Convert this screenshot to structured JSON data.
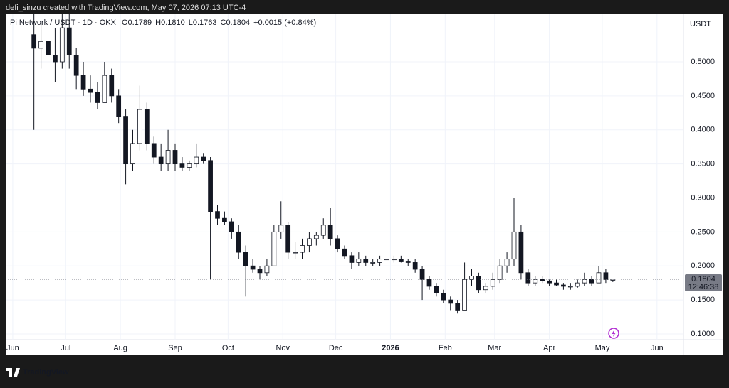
{
  "header": {
    "caption": "defi_sinzu created with TradingView.com, May 07, 2026 07:13 UTC-4"
  },
  "footer": {
    "logo": "TradingView"
  },
  "chart_data": {
    "type": "candlestick",
    "symbol": "Pi Network / USDT · 1D · OKX",
    "legend_values": [
      "O0.1789",
      "H0.1810",
      "L0.1763",
      "C0.1804",
      "+0.0015 (+0.84%)"
    ],
    "currency": "USDT",
    "last_price": {
      "value": 0.1804,
      "label": "0.1804"
    },
    "countdown": "12:46:38",
    "xlim": [
      -4,
      380
    ],
    "ylim": [
      0.0916,
      0.57
    ],
    "xticks": [
      {
        "value": 0,
        "label": "Jun"
      },
      {
        "value": 30,
        "label": "Jul"
      },
      {
        "value": 61,
        "label": "Aug"
      },
      {
        "value": 92,
        "label": "Sep"
      },
      {
        "value": 122,
        "label": "Oct"
      },
      {
        "value": 153,
        "label": "Nov"
      },
      {
        "value": 183,
        "label": "Dec"
      },
      {
        "value": 214,
        "label": "2026"
      },
      {
        "value": 245,
        "label": "Feb"
      },
      {
        "value": 273,
        "label": "Mar"
      },
      {
        "value": 304,
        "label": "Apr"
      },
      {
        "value": 334,
        "label": "May"
      },
      {
        "value": 365,
        "label": "Jun"
      }
    ],
    "yticks": [
      {
        "value": 0.1,
        "label": "0.1000"
      },
      {
        "value": 0.15,
        "label": "0.1500"
      },
      {
        "value": 0.2,
        "label": "0.2000"
      },
      {
        "value": 0.25,
        "label": "0.2500"
      },
      {
        "value": 0.3,
        "label": "0.3000"
      },
      {
        "value": 0.35,
        "label": "0.3500"
      },
      {
        "value": 0.4,
        "label": "0.4000"
      },
      {
        "value": 0.45,
        "label": "0.4500"
      },
      {
        "value": 0.5,
        "label": "0.5000"
      }
    ],
    "grid": true,
    "up_color": "#ffffff",
    "down_color": "#131722",
    "wick_color": "#131722",
    "series": [
      {
        "name": "Pi Network / USDT",
        "x": [
          12,
          16,
          20,
          24,
          28,
          32,
          36,
          40,
          44,
          48,
          52,
          56,
          60,
          64,
          68,
          72,
          76,
          80,
          84,
          88,
          92,
          96,
          100,
          104,
          108,
          112,
          116,
          120,
          124,
          128,
          132,
          136,
          140,
          144,
          148,
          152,
          156,
          160,
          164,
          168,
          172,
          176,
          180,
          184,
          188,
          192,
          196,
          200,
          204,
          208,
          212,
          216,
          220,
          224,
          228,
          232,
          236,
          240,
          244,
          248,
          252,
          256,
          260,
          264,
          268,
          272,
          276,
          280,
          284,
          288,
          292,
          296,
          300,
          304,
          308,
          312,
          316,
          320,
          324,
          328,
          332,
          336,
          340
        ],
        "open": [
          0.54,
          0.52,
          0.53,
          0.51,
          0.5,
          0.55,
          0.51,
          0.48,
          0.46,
          0.455,
          0.44,
          0.48,
          0.45,
          0.42,
          0.35,
          0.38,
          0.43,
          0.38,
          0.36,
          0.35,
          0.37,
          0.35,
          0.345,
          0.35,
          0.36,
          0.355,
          0.28,
          0.27,
          0.265,
          0.25,
          0.22,
          0.2,
          0.195,
          0.19,
          0.2,
          0.25,
          0.26,
          0.22,
          0.22,
          0.23,
          0.24,
          0.245,
          0.26,
          0.24,
          0.225,
          0.215,
          0.205,
          0.21,
          0.205,
          0.205,
          0.21,
          0.21,
          0.21,
          0.207,
          0.205,
          0.195,
          0.18,
          0.17,
          0.16,
          0.15,
          0.145,
          0.135,
          0.18,
          0.185,
          0.165,
          0.17,
          0.18,
          0.2,
          0.21,
          0.25,
          0.19,
          0.175,
          0.18,
          0.178,
          0.175,
          0.172,
          0.17,
          0.17,
          0.175,
          0.18,
          0.175,
          0.19,
          0.1789
        ],
        "high": [
          0.57,
          0.56,
          0.57,
          0.55,
          0.57,
          0.57,
          0.52,
          0.5,
          0.48,
          0.47,
          0.5,
          0.49,
          0.46,
          0.43,
          0.4,
          0.465,
          0.44,
          0.39,
          0.38,
          0.4,
          0.38,
          0.36,
          0.355,
          0.38,
          0.365,
          0.36,
          0.29,
          0.28,
          0.27,
          0.26,
          0.23,
          0.21,
          0.2,
          0.21,
          0.26,
          0.295,
          0.265,
          0.235,
          0.24,
          0.25,
          0.25,
          0.27,
          0.285,
          0.245,
          0.23,
          0.22,
          0.22,
          0.215,
          0.21,
          0.215,
          0.215,
          0.215,
          0.215,
          0.21,
          0.21,
          0.2,
          0.185,
          0.175,
          0.165,
          0.155,
          0.15,
          0.205,
          0.195,
          0.19,
          0.175,
          0.19,
          0.21,
          0.22,
          0.3,
          0.26,
          0.195,
          0.185,
          0.185,
          0.18,
          0.18,
          0.175,
          0.175,
          0.18,
          0.19,
          0.185,
          0.2,
          0.195,
          0.181
        ],
        "low": [
          0.4,
          0.49,
          0.5,
          0.47,
          0.49,
          0.49,
          0.46,
          0.45,
          0.44,
          0.43,
          0.44,
          0.44,
          0.41,
          0.32,
          0.34,
          0.37,
          0.37,
          0.35,
          0.34,
          0.34,
          0.34,
          0.34,
          0.34,
          0.345,
          0.35,
          0.18,
          0.26,
          0.26,
          0.24,
          0.21,
          0.155,
          0.19,
          0.18,
          0.185,
          0.2,
          0.24,
          0.21,
          0.21,
          0.21,
          0.22,
          0.23,
          0.24,
          0.23,
          0.22,
          0.21,
          0.195,
          0.2,
          0.2,
          0.2,
          0.2,
          0.205,
          0.205,
          0.205,
          0.2,
          0.19,
          0.15,
          0.165,
          0.155,
          0.145,
          0.135,
          0.13,
          0.135,
          0.17,
          0.16,
          0.16,
          0.165,
          0.175,
          0.19,
          0.2,
          0.18,
          0.17,
          0.17,
          0.175,
          0.17,
          0.17,
          0.165,
          0.165,
          0.168,
          0.17,
          0.17,
          0.175,
          0.175,
          0.1763
        ],
        "close": [
          0.52,
          0.53,
          0.51,
          0.5,
          0.55,
          0.51,
          0.48,
          0.46,
          0.455,
          0.44,
          0.48,
          0.45,
          0.42,
          0.35,
          0.38,
          0.43,
          0.38,
          0.36,
          0.35,
          0.37,
          0.35,
          0.345,
          0.35,
          0.36,
          0.355,
          0.28,
          0.27,
          0.265,
          0.25,
          0.22,
          0.2,
          0.195,
          0.19,
          0.2,
          0.25,
          0.26,
          0.22,
          0.22,
          0.23,
          0.24,
          0.245,
          0.26,
          0.24,
          0.225,
          0.215,
          0.205,
          0.21,
          0.205,
          0.205,
          0.21,
          0.21,
          0.21,
          0.207,
          0.205,
          0.195,
          0.18,
          0.17,
          0.16,
          0.15,
          0.145,
          0.135,
          0.18,
          0.185,
          0.165,
          0.17,
          0.18,
          0.2,
          0.21,
          0.25,
          0.19,
          0.175,
          0.18,
          0.178,
          0.175,
          0.172,
          0.17,
          0.17,
          0.175,
          0.18,
          0.175,
          0.19,
          0.18,
          0.1804
        ]
      }
    ]
  }
}
